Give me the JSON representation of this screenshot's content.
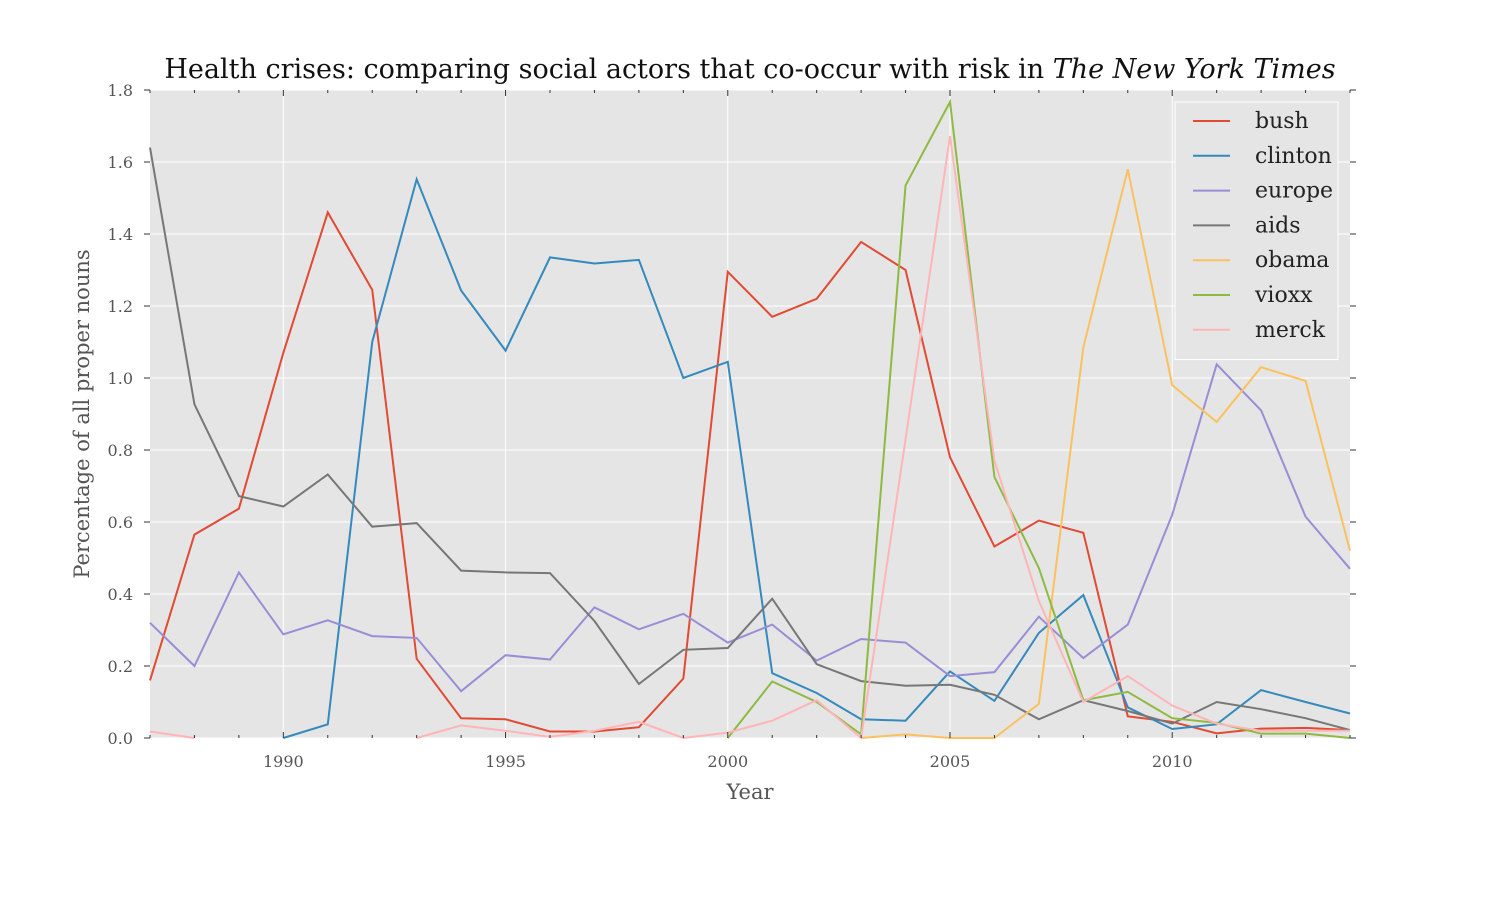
{
  "chart_data": {
    "type": "line",
    "title": "Health crises: comparing social actors that co-occur with risk in ",
    "title_italic": "The New York Times",
    "xlabel": "Year",
    "ylabel": "Percentage of all proper nouns",
    "xlim": [
      1987,
      2014
    ],
    "ylim": [
      0.0,
      1.8
    ],
    "xticks": [
      1990,
      1995,
      2000,
      2005,
      2010
    ],
    "yticks": [
      0.0,
      0.2,
      0.4,
      0.6,
      0.8,
      1.0,
      1.2,
      1.4,
      1.6,
      1.8
    ],
    "ytick_labels": [
      "0.0",
      "0.2",
      "0.4",
      "0.6",
      "0.8",
      "1.0",
      "1.2",
      "1.4",
      "1.6",
      "1.8"
    ],
    "grid": true,
    "legend_position": "top-right",
    "background": "#e5e5e5",
    "x": [
      1987,
      1988,
      1989,
      1990,
      1991,
      1992,
      1993,
      1994,
      1995,
      1996,
      1997,
      1998,
      1999,
      2000,
      2001,
      2002,
      2003,
      2004,
      2005,
      2006,
      2007,
      2008,
      2009,
      2010,
      2011,
      2012,
      2013,
      2014
    ],
    "series": [
      {
        "name": "bush",
        "color": "#e24a33",
        "values": [
          0.16,
          0.565,
          0.637,
          1.07,
          1.46,
          1.245,
          0.22,
          0.055,
          0.052,
          0.018,
          0.018,
          0.03,
          0.165,
          1.295,
          1.17,
          1.22,
          1.378,
          1.3,
          0.78,
          0.532,
          0.604,
          0.57,
          0.06,
          0.045,
          0.013,
          0.026,
          0.028,
          0.022
        ]
      },
      {
        "name": "clinton",
        "color": "#348abd",
        "values": [
          null,
          null,
          null,
          0.0,
          0.038,
          1.1,
          1.552,
          1.243,
          1.076,
          1.335,
          1.318,
          1.328,
          1.0,
          1.045,
          0.18,
          0.125,
          0.052,
          0.048,
          0.185,
          0.103,
          0.292,
          0.397,
          0.085,
          0.025,
          0.038,
          0.133,
          0.1,
          0.068
        ]
      },
      {
        "name": "europe",
        "color": "#988ed5",
        "values": [
          0.32,
          0.2,
          0.46,
          0.288,
          0.327,
          0.283,
          0.278,
          0.13,
          0.23,
          0.218,
          0.363,
          0.302,
          0.345,
          0.265,
          0.315,
          0.215,
          0.275,
          0.265,
          0.172,
          0.183,
          0.337,
          0.222,
          0.315,
          0.62,
          1.038,
          0.91,
          0.615,
          0.47
        ]
      },
      {
        "name": "aids",
        "color": "#777777",
        "values": [
          1.64,
          0.927,
          0.672,
          0.643,
          0.732,
          0.587,
          0.597,
          0.465,
          0.46,
          0.458,
          0.325,
          0.15,
          0.245,
          0.25,
          0.387,
          0.205,
          0.158,
          0.145,
          0.148,
          0.12,
          0.052,
          0.105,
          0.075,
          0.04,
          0.1,
          0.08,
          0.055,
          0.022
        ]
      },
      {
        "name": "obama",
        "color": "#fbc15e",
        "values": [
          null,
          null,
          null,
          null,
          null,
          null,
          null,
          null,
          null,
          null,
          null,
          null,
          null,
          null,
          null,
          null,
          0.0,
          0.01,
          0.0,
          0.0,
          0.095,
          1.085,
          1.58,
          0.98,
          0.878,
          1.03,
          0.992,
          0.52
        ]
      },
      {
        "name": "vioxx",
        "color": "#8eba42",
        "values": [
          null,
          null,
          null,
          null,
          null,
          null,
          null,
          null,
          null,
          null,
          null,
          null,
          null,
          0.0,
          0.157,
          0.1,
          0.01,
          1.535,
          1.767,
          0.725,
          0.472,
          0.105,
          0.128,
          0.055,
          0.042,
          0.012,
          0.012,
          0.0
        ]
      },
      {
        "name": "merck",
        "color": "#ffb5b8",
        "values": [
          0.018,
          0.0,
          null,
          null,
          null,
          null,
          0.0,
          0.035,
          0.02,
          0.003,
          0.02,
          0.045,
          0.0,
          0.015,
          0.048,
          0.105,
          0.0,
          0.83,
          1.672,
          0.77,
          0.38,
          0.1,
          0.172,
          0.09,
          0.04,
          0.02,
          0.02,
          0.02
        ]
      }
    ]
  }
}
